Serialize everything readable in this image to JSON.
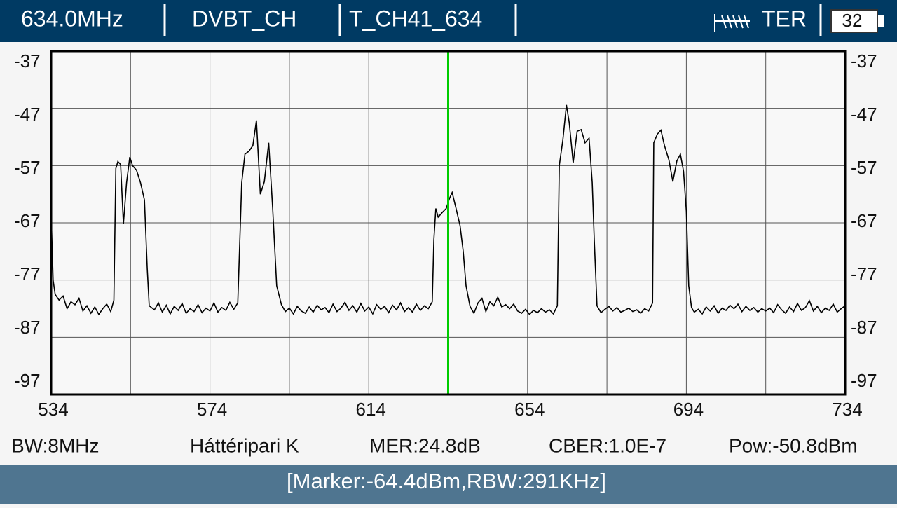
{
  "header": {
    "frequency": "634.0MHz",
    "mode": "DVBT_CH",
    "channel": "T_CH41_634",
    "band": "TER",
    "battery": "32"
  },
  "info": [
    "BW:8MHz",
    "Háttéripari K",
    "MER:24.8dB",
    "CBER:1.0E-7",
    "Pow:-50.8dBm"
  ],
  "status": "[Marker:-64.4dBm,RBW:291KHz]",
  "chart_data": {
    "type": "line",
    "color": "#000000",
    "xlim": [
      534,
      734
    ],
    "xticks": [
      534,
      574,
      614,
      654,
      694,
      734
    ],
    "xgrid": [
      534,
      554,
      574,
      594,
      614,
      634,
      654,
      674,
      694,
      714,
      734
    ],
    "ylim": [
      -97,
      -37
    ],
    "yticks": [
      -37,
      -47,
      -57,
      -67,
      -77,
      -87,
      -97
    ],
    "grid": true,
    "marker": {
      "x": 634,
      "color": "#00cc00"
    },
    "x": [
      534,
      534.5,
      535,
      536,
      537,
      538,
      539,
      540,
      541,
      542,
      543,
      544,
      545,
      546,
      547,
      548,
      549,
      549.8,
      550.3,
      550.8,
      551.5,
      552.2,
      553,
      553.8,
      554.5,
      555.5,
      556.5,
      557.5,
      558.2,
      558.7,
      560,
      561,
      562,
      563,
      564,
      565,
      566,
      567,
      568,
      569,
      570,
      571,
      572,
      573,
      574,
      575,
      576,
      577,
      578,
      579,
      580,
      581,
      582,
      582.8,
      583.8,
      584.8,
      585.7,
      586.7,
      587.7,
      588.8,
      589.8,
      590.8,
      592,
      593,
      594,
      595,
      596,
      597,
      598,
      599,
      600,
      601,
      602,
      603,
      604,
      605,
      606,
      607,
      608,
      609,
      610,
      611,
      612,
      613,
      614,
      615,
      616,
      617,
      618,
      619,
      620,
      621,
      622,
      623,
      624,
      625,
      626,
      627,
      628,
      629,
      630,
      630.4,
      630.9,
      631.5,
      632.5,
      633.5,
      634.3,
      635,
      636,
      637,
      637.8,
      638.5,
      639.5,
      640.5,
      641.5,
      642.5,
      643.5,
      644.5,
      645.5,
      646.5,
      647.5,
      648.5,
      649.5,
      650.5,
      651.5,
      652.5,
      653.5,
      654.5,
      655.5,
      656.5,
      657.5,
      658.5,
      659.5,
      660.5,
      661.5,
      662,
      662.9,
      663.8,
      664.5,
      665.5,
      666.5,
      667.5,
      668.5,
      669.5,
      670.3,
      670.8,
      671.5,
      672.5,
      673.5,
      674.5,
      675.5,
      676.5,
      677.5,
      678.5,
      679.5,
      680.5,
      681.5,
      682.5,
      683.5,
      684.5,
      685.5,
      685.8,
      686.7,
      687.6,
      688.5,
      689.6,
      690.6,
      691.6,
      692.5,
      693.3,
      694,
      694.6,
      695.3,
      696,
      697,
      698,
      699,
      700,
      701,
      702,
      703,
      704,
      705,
      706,
      707,
      708,
      709,
      710,
      711,
      712,
      713,
      714,
      715,
      716,
      717,
      718,
      719,
      720,
      721,
      722,
      723,
      724,
      725,
      726,
      727,
      728,
      729,
      730,
      731,
      732,
      733,
      734
    ],
    "values": [
      -65.4,
      -77,
      -79.5,
      -80.5,
      -79.8,
      -82,
      -80.8,
      -81.3,
      -80.2,
      -82.4,
      -81.5,
      -82.8,
      -81.7,
      -83,
      -82,
      -81.2,
      -82.5,
      -80.5,
      -57.5,
      -56.3,
      -56.8,
      -67.2,
      -60,
      -55.5,
      -57,
      -57.8,
      -60,
      -63,
      -75,
      -81.5,
      -82.2,
      -81,
      -82.6,
      -81.4,
      -82.9,
      -81.6,
      -82.3,
      -81.1,
      -82.8,
      -82,
      -82.5,
      -81.3,
      -82.7,
      -81.9,
      -82.4,
      -81,
      -82.6,
      -81.8,
      -82.3,
      -80.9,
      -82.1,
      -81,
      -60,
      -55,
      -54.5,
      -53.5,
      -49.1,
      -62,
      -59.8,
      -53,
      -64.5,
      -78,
      -81.3,
      -82.5,
      -81.9,
      -82.9,
      -81.6,
      -82.4,
      -82.8,
      -81.7,
      -82.6,
      -81.4,
      -82.2,
      -81.8,
      -82.7,
      -81.2,
      -82.5,
      -81.9,
      -80.9,
      -82.3,
      -81.5,
      -82.6,
      -81.1,
      -82.4,
      -81.7,
      -82.9,
      -81.3,
      -82.1,
      -81.6,
      -82.7,
      -81.4,
      -82.2,
      -81,
      -82.5,
      -81.8,
      -82.6,
      -81.2,
      -82.3,
      -81.5,
      -82,
      -80.8,
      -70,
      -64.5,
      -66,
      -65.2,
      -64.5,
      -62.8,
      -61.7,
      -64.5,
      -67.5,
      -72,
      -78,
      -81.6,
      -82.8,
      -81,
      -80.2,
      -82.5,
      -80.8,
      -81.5,
      -80,
      -81.7,
      -81.3,
      -82,
      -81.2,
      -82.4,
      -82.8,
      -82.1,
      -83,
      -82.3,
      -82.7,
      -82,
      -82.6,
      -82.2,
      -82.9,
      -81.5,
      -57,
      -52.5,
      -46.4,
      -49.5,
      -56.5,
      -51,
      -50.7,
      -53,
      -52.2,
      -60,
      -70,
      -81.5,
      -82.7,
      -82.1,
      -81.6,
      -82.4,
      -81.8,
      -82.6,
      -82.3,
      -81.9,
      -82.5,
      -82.2,
      -82.8,
      -82,
      -82.4,
      -81,
      -53,
      -51.5,
      -50.8,
      -53.5,
      -56,
      -59.8,
      -56.2,
      -55,
      -58,
      -65,
      -78,
      -81.8,
      -82.6,
      -82.1,
      -82.9,
      -81.7,
      -82.4,
      -81.5,
      -82.8,
      -81.9,
      -82.3,
      -81.4,
      -82,
      -81.2,
      -82.5,
      -81.6,
      -82.3,
      -81.8,
      -82.6,
      -82,
      -82.4,
      -81.9,
      -82.7,
      -81.3,
      -82.2,
      -82.8,
      -81.7,
      -82.5,
      -81.1,
      -82.3,
      -81.8,
      -80.6,
      -82.4,
      -81.6,
      -82.7,
      -81.9,
      -82.3,
      -81.2,
      -82.6,
      -82,
      -81.5
    ]
  }
}
